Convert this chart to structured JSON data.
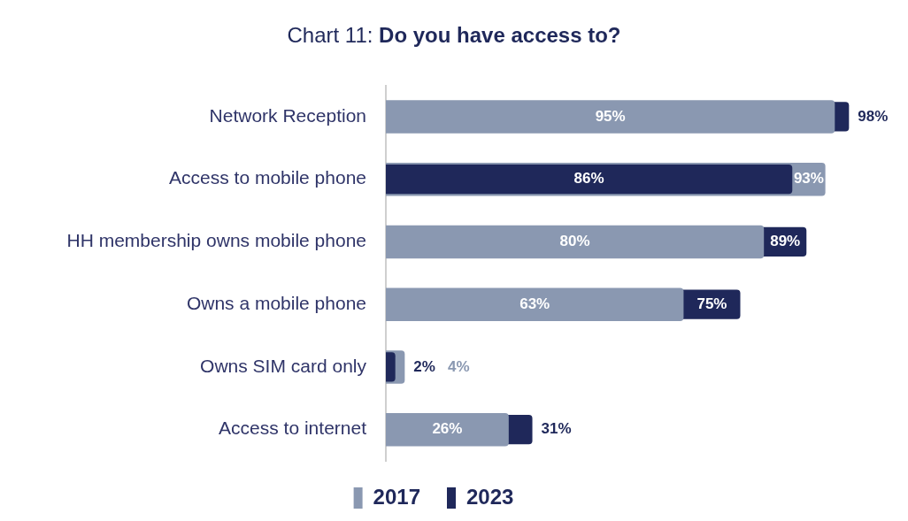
{
  "chart_data": {
    "type": "bar",
    "orientation": "horizontal",
    "title": "Chart 11: Do you have access to?",
    "categories": [
      "Network Reception",
      "Access to mobile phone",
      "HH membership owns mobile phone",
      "Owns a mobile phone",
      "Owns SIM card only",
      "Access to internet"
    ],
    "series": [
      {
        "name": "2017",
        "color": "#8a98b1",
        "values": [
          95,
          93,
          80,
          63,
          4,
          26
        ],
        "value_labels": [
          "95%",
          "93%",
          "80%",
          "63%",
          "4%",
          "26%"
        ]
      },
      {
        "name": "2023",
        "color": "#1f285a",
        "values": [
          98,
          86,
          89,
          75,
          2,
          31
        ],
        "value_labels": [
          "98%",
          "86%",
          "89%",
          "75%",
          "2%",
          "31%"
        ]
      }
    ],
    "tick_labels": "y",
    "legend": "bottom",
    "grid": false
  }
}
